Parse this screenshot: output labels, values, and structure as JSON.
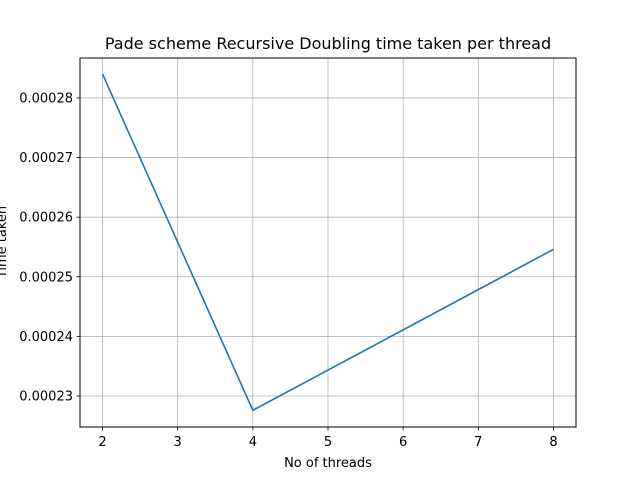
{
  "chart_data": {
    "type": "line",
    "title": "Pade scheme Recursive Doubling time taken per thread",
    "xlabel": "No of threads",
    "ylabel": "Time taken",
    "x": [
      2,
      4,
      8
    ],
    "series": [
      {
        "values": [
          0.000284,
          0.0002276,
          0.0002546
        ],
        "color": "#1f77b4"
      }
    ],
    "xticks": [
      2,
      3,
      4,
      5,
      6,
      7,
      8
    ],
    "xtick_labels": [
      "2",
      "3",
      "4",
      "5",
      "6",
      "7",
      "8"
    ],
    "yticks": [
      0.00023,
      0.00024,
      0.00025,
      0.00026,
      0.00027,
      0.00028
    ],
    "ytick_labels": [
      "0.00023",
      "0.00024",
      "0.00025",
      "0.00026",
      "0.00027",
      "0.00028"
    ],
    "xlim": [
      1.7,
      8.3
    ],
    "ylim": [
      0.0002248,
      0.0002867
    ],
    "grid": true
  }
}
